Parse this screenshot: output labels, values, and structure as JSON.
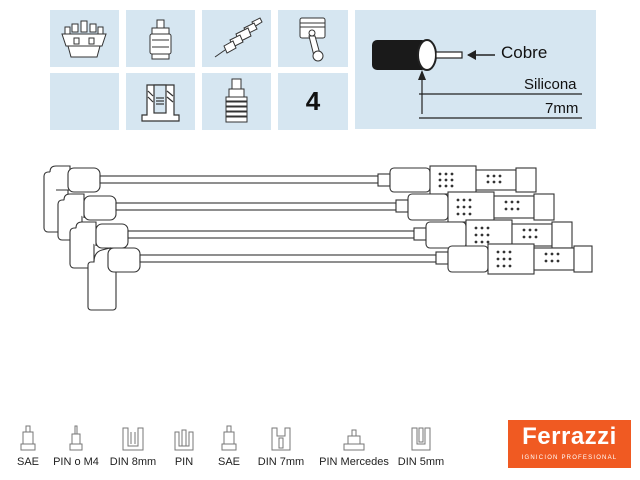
{
  "specs": {
    "wire_count": "4",
    "conductor_label": "Cobre",
    "insulation_label": "Silicona",
    "diameter_label": "7mm"
  },
  "legend": [
    {
      "label": "SAE"
    },
    {
      "label": "PIN o M4"
    },
    {
      "label": "DIN 8mm"
    },
    {
      "label": "PIN"
    },
    {
      "label": "SAE"
    },
    {
      "label": "DIN 7mm"
    },
    {
      "label": "PIN Mercedes"
    },
    {
      "label": "DIN 5mm"
    }
  ],
  "brand": {
    "name": "Ferrazzi",
    "tagline": "IGNICION PROFESIONAL",
    "color": "#f05a22"
  },
  "colors": {
    "panel": "#d6e6f1",
    "line": "#333333"
  }
}
